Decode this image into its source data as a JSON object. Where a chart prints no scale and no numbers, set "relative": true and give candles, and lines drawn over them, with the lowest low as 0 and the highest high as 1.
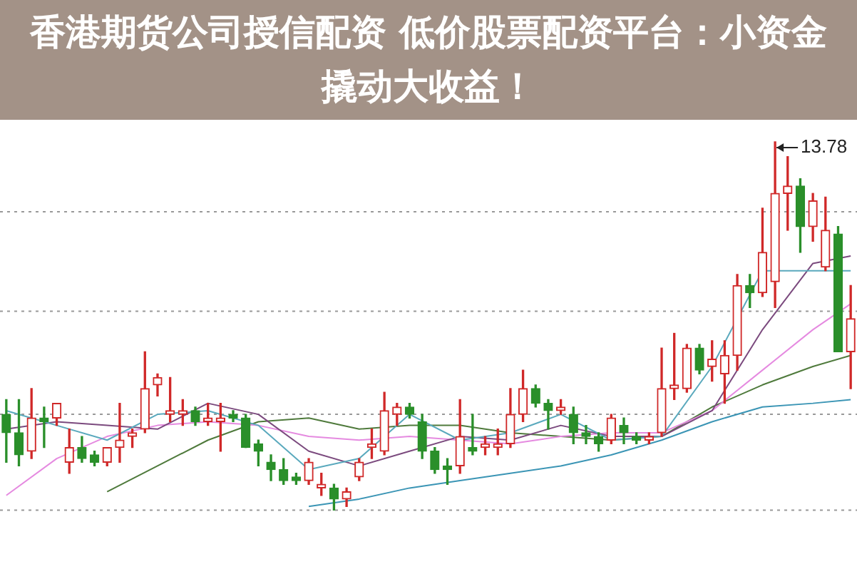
{
  "chart_data": {
    "type": "candlestick",
    "title": "香港期货公司授信配资 低价股票配资平台：小资金撬动大收益！",
    "relative": true,
    "legend": false,
    "ref_lines": [
      {
        "axis": "y",
        "value": 0,
        "color": "#999999",
        "line_style": "dotted"
      },
      {
        "axis": "y",
        "value": 0.26,
        "color": "#999999",
        "line_style": "dotted"
      },
      {
        "axis": "y",
        "value": 0.54,
        "color": "#999999",
        "line_style": "dotted"
      },
      {
        "axis": "y",
        "value": 0.81,
        "color": "#999999",
        "line_style": "dotted"
      }
    ],
    "categories": [
      null,
      null,
      null,
      null,
      null,
      null,
      null,
      null,
      null,
      null,
      null,
      null,
      null,
      null,
      null,
      null,
      null,
      null,
      null,
      null,
      null,
      null,
      null,
      null,
      null,
      null,
      null,
      null,
      null,
      null,
      null,
      null,
      null,
      null,
      null,
      null,
      null,
      null,
      null,
      null,
      null,
      null,
      null,
      null,
      null,
      null,
      null,
      null,
      null,
      null,
      null,
      null,
      null,
      null,
      null,
      null,
      null,
      null,
      null,
      null,
      null,
      null,
      null,
      null,
      null,
      null,
      null,
      null
    ],
    "ohlc": [
      [
        0.26,
        0.3,
        0.13,
        0.21
      ],
      [
        0.21,
        0.3,
        0.12,
        0.15
      ],
      [
        0.16,
        0.33,
        0.14,
        0.25
      ],
      [
        0.25,
        0.28,
        0.17,
        0.24
      ],
      [
        0.25,
        0.29,
        0.23,
        0.29
      ],
      [
        0.13,
        0.22,
        0.1,
        0.17
      ],
      [
        0.17,
        0.2,
        0.13,
        0.14
      ],
      [
        0.15,
        0.16,
        0.12,
        0.13
      ],
      [
        0.13,
        0.17,
        0.12,
        0.17
      ],
      [
        0.17,
        0.29,
        0.13,
        0.19
      ],
      [
        0.2,
        0.22,
        0.17,
        0.21
      ],
      [
        0.22,
        0.43,
        0.21,
        0.33
      ],
      [
        0.34,
        0.37,
        0.31,
        0.36
      ],
      [
        0.26,
        0.36,
        0.24,
        0.27
      ],
      [
        0.26,
        0.3,
        0.23,
        0.27
      ],
      [
        0.27,
        0.28,
        0.23,
        0.24
      ],
      [
        0.24,
        0.29,
        0.23,
        0.25
      ],
      [
        0.24,
        0.29,
        0.16,
        0.25
      ],
      [
        0.26,
        0.27,
        0.24,
        0.25
      ],
      [
        0.25,
        0.26,
        0.17,
        0.17
      ],
      [
        0.18,
        0.19,
        0.12,
        0.16
      ],
      [
        0.13,
        0.15,
        0.08,
        0.11
      ],
      [
        0.11,
        0.14,
        0.07,
        0.08
      ],
      [
        0.09,
        0.1,
        0.07,
        0.08
      ],
      [
        0.08,
        0.14,
        0.07,
        0.13
      ],
      [
        0.06,
        0.1,
        0.04,
        0.07
      ],
      [
        0.06,
        0.07,
        0,
        0.03
      ],
      [
        0.03,
        0.06,
        0.01,
        0.05
      ],
      [
        0.09,
        0.14,
        0.08,
        0.13
      ],
      [
        0.17,
        0.22,
        0.14,
        0.18
      ],
      [
        0.16,
        0.32,
        0.15,
        0.27
      ],
      [
        0.26,
        0.29,
        0.23,
        0.28
      ],
      [
        0.28,
        0.29,
        0.25,
        0.26
      ],
      [
        0.24,
        0.26,
        0.14,
        0.16
      ],
      [
        0.16,
        0.17,
        0.1,
        0.11
      ],
      [
        0.12,
        0.14,
        0.07,
        0.11
      ],
      [
        0.12,
        0.3,
        0.1,
        0.2
      ],
      [
        0.17,
        0.26,
        0.15,
        0.16
      ],
      [
        0.17,
        0.2,
        0.15,
        0.18
      ],
      [
        0.17,
        0.22,
        0.15,
        0.18
      ],
      [
        0.18,
        0.33,
        0.17,
        0.26
      ],
      [
        0.26,
        0.38,
        0.24,
        0.33
      ],
      [
        0.33,
        0.34,
        0.28,
        0.29
      ],
      [
        0.29,
        0.3,
        0.22,
        0.27
      ],
      [
        0.27,
        0.3,
        0.26,
        0.28
      ],
      [
        0.26,
        0.28,
        0.18,
        0.21
      ],
      [
        0.21,
        0.23,
        0.18,
        0.2
      ],
      [
        0.2,
        0.21,
        0.16,
        0.18
      ],
      [
        0.19,
        0.26,
        0.18,
        0.25
      ],
      [
        0.23,
        0.25,
        0.18,
        0.21
      ],
      [
        0.2,
        0.21,
        0.18,
        0.19
      ],
      [
        0.19,
        0.21,
        0.18,
        0.2
      ],
      [
        0.21,
        0.44,
        0.2,
        0.33
      ],
      [
        0.33,
        0.48,
        0.3,
        0.34
      ],
      [
        0.33,
        0.45,
        0.32,
        0.44
      ],
      [
        0.44,
        0.45,
        0.37,
        0.38
      ],
      [
        0.39,
        0.46,
        0.35,
        0.41
      ],
      [
        0.37,
        0.46,
        0.29,
        0.42
      ],
      [
        0.42,
        0.64,
        0.38,
        0.61
      ],
      [
        0.61,
        0.64,
        0.55,
        0.59
      ],
      [
        0.59,
        0.82,
        0.58,
        0.7
      ],
      [
        0.62,
        1,
        0.55,
        0.86
      ],
      [
        0.86,
        0.96,
        0.76,
        0.88
      ],
      [
        0.88,
        0.9,
        0.7,
        0.77
      ],
      [
        0.77,
        0.86,
        0.73,
        0.84
      ],
      [
        0.66,
        0.85,
        0.65,
        0.76
      ],
      [
        0.75,
        0.77,
        0.43,
        0.43
      ],
      [
        0.43,
        0.61,
        0.33,
        0.52
      ]
    ],
    "colors": [
      "#2a8f2a",
      "#2a8f2a",
      "#d02828",
      "#2a8f2a",
      "#d02828",
      "#d02828",
      "#2a8f2a",
      "#2a8f2a",
      "#d02828",
      "#d02828",
      "#d02828",
      "#d02828",
      "#d02828",
      "#d02828",
      "#d02828",
      "#2a8f2a",
      "#d02828",
      "#d02828",
      "#2a8f2a",
      "#2a8f2a",
      "#2a8f2a",
      "#2a8f2a",
      "#2a8f2a",
      "#2a8f2a",
      "#d02828",
      "#d02828",
      "#2a8f2a",
      "#d02828",
      "#d02828",
      "#d02828",
      "#d02828",
      "#d02828",
      "#2a8f2a",
      "#2a8f2a",
      "#2a8f2a",
      "#2a8f2a",
      "#d02828",
      "#2a8f2a",
      "#d02828",
      "#d02828",
      "#d02828",
      "#d02828",
      "#2a8f2a",
      "#2a8f2a",
      "#d02828",
      "#2a8f2a",
      "#2a8f2a",
      "#2a8f2a",
      "#d02828",
      "#2a8f2a",
      "#2a8f2a",
      "#d02828",
      "#d02828",
      "#d02828",
      "#d02828",
      "#2a8f2a",
      "#d02828",
      "#d02828",
      "#d02828",
      "#2a8f2a",
      "#d02828",
      "#d02828",
      "#d02828",
      "#2a8f2a",
      "#d02828",
      "#d02828",
      "#2a8f2a",
      "#d02828"
    ],
    "series": [
      {
        "type": "line",
        "color": "#5aa9bd",
        "values": [
          0.27,
          null,
          null,
          null,
          0.23,
          null,
          null,
          null,
          0.19,
          null,
          null,
          null,
          0.26,
          null,
          null,
          null,
          0.27,
          null,
          null,
          null,
          0.23,
          null,
          null,
          null,
          0.11,
          null,
          null,
          null,
          0.14,
          null,
          null,
          null,
          0.26,
          null,
          null,
          null,
          0.19,
          null,
          null,
          null,
          0.21,
          null,
          null,
          null,
          0.26,
          null,
          null,
          null,
          0.19,
          null,
          null,
          null,
          0.2,
          null,
          null,
          null,
          0.39,
          null,
          null,
          null,
          0.65,
          null,
          null,
          null,
          null,
          null,
          null,
          0.65
        ]
      },
      {
        "type": "line",
        "color": "#7b4a7e",
        "values": [
          0.22,
          null,
          null,
          null,
          0.24,
          null,
          null,
          null,
          0.23,
          null,
          null,
          null,
          0.22,
          null,
          null,
          null,
          0.29,
          null,
          null,
          null,
          0.26,
          null,
          null,
          null,
          0.16,
          null,
          null,
          null,
          0.12,
          null,
          null,
          null,
          0.16,
          null,
          null,
          null,
          0.2,
          null,
          null,
          null,
          0.19,
          null,
          null,
          null,
          0.23,
          null,
          null,
          null,
          0.2,
          null,
          null,
          null,
          0.2,
          null,
          null,
          null,
          0.27,
          null,
          null,
          null,
          0.49,
          null,
          null,
          null,
          0.67,
          null,
          null,
          0.69
        ]
      },
      {
        "type": "line",
        "color": "#e58ae0",
        "values": [
          0.04,
          null,
          null,
          null,
          0.14,
          null,
          null,
          null,
          0.2,
          null,
          null,
          null,
          0.23,
          null,
          null,
          null,
          0.24,
          null,
          null,
          null,
          0.23,
          null,
          null,
          null,
          0.2,
          null,
          null,
          null,
          0.19,
          null,
          null,
          null,
          0.2,
          null,
          null,
          null,
          0.19,
          null,
          null,
          null,
          0.18,
          null,
          null,
          null,
          0.2,
          null,
          null,
          null,
          0.21,
          null,
          null,
          null,
          0.21,
          null,
          null,
          null,
          0.27,
          null,
          null,
          null,
          0.38,
          null,
          null,
          null,
          0.49,
          null,
          null,
          0.56
        ]
      },
      {
        "type": "line",
        "color": "#4f7a3c",
        "values": [
          null,
          null,
          null,
          null,
          null,
          null,
          null,
          null,
          0.05,
          null,
          null,
          null,
          0.12,
          null,
          null,
          null,
          0.19,
          null,
          null,
          null,
          0.24,
          null,
          null,
          null,
          0.25,
          null,
          null,
          null,
          0.22,
          null,
          null,
          null,
          0.23,
          null,
          null,
          null,
          0.23,
          null,
          null,
          null,
          0.21,
          null,
          null,
          null,
          0.2,
          null,
          null,
          null,
          0.19,
          null,
          null,
          null,
          0.2,
          null,
          null,
          null,
          0.28,
          null,
          null,
          null,
          0.34,
          null,
          null,
          null,
          0.39,
          null,
          null,
          0.42
        ]
      },
      {
        "type": "line",
        "color": "#3b95b5",
        "values": [
          null,
          null,
          null,
          null,
          null,
          null,
          null,
          null,
          null,
          null,
          null,
          null,
          null,
          null,
          null,
          null,
          null,
          null,
          null,
          null,
          null,
          null,
          null,
          null,
          0.01,
          null,
          null,
          null,
          0.03,
          null,
          null,
          null,
          0.06,
          null,
          null,
          null,
          0.08,
          null,
          null,
          null,
          0.1,
          null,
          null,
          null,
          0.12,
          null,
          null,
          null,
          0.15,
          null,
          null,
          null,
          0.19,
          null,
          null,
          null,
          0.24,
          null,
          null,
          null,
          0.28,
          null,
          null,
          null,
          0.29,
          null,
          null,
          0.3
        ]
      }
    ],
    "annotations": [
      "13.78"
    ]
  }
}
